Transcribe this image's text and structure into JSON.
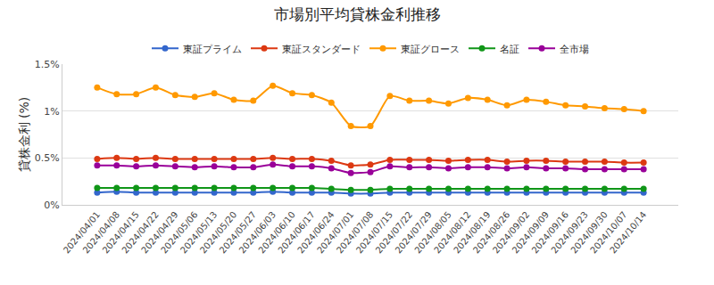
{
  "chart_data": {
    "type": "line",
    "title": "市場別平均貸株金利推移",
    "y_label": "貸株金利 (%)",
    "categories": [
      "2024/04/01",
      "2024/04/08",
      "2024/04/15",
      "2024/04/22",
      "2024/04/29",
      "2024/05/06",
      "2024/05/13",
      "2024/05/20",
      "2024/05/27",
      "2024/06/03",
      "2024/06/10",
      "2024/06/17",
      "2024/06/24",
      "2024/07/01",
      "2024/07/08",
      "2024/07/15",
      "2024/07/22",
      "2024/07/29",
      "2024/08/05",
      "2024/08/12",
      "2024/08/19",
      "2024/08/26",
      "2024/09/02",
      "2024/09/09",
      "2024/09/16",
      "2024/09/23",
      "2024/09/30",
      "2024/10/07",
      "2024/10/14"
    ],
    "series": [
      {
        "name": "東証プライム",
        "color": "#3366cc",
        "values": [
          0.13,
          0.14,
          0.13,
          0.13,
          0.13,
          0.13,
          0.13,
          0.13,
          0.13,
          0.14,
          0.13,
          0.13,
          0.13,
          0.12,
          0.12,
          0.13,
          0.13,
          0.13,
          0.13,
          0.13,
          0.13,
          0.13,
          0.13,
          0.13,
          0.13,
          0.13,
          0.13,
          0.13,
          0.13
        ]
      },
      {
        "name": "東証スタンダード",
        "color": "#dc3912",
        "values": [
          0.49,
          0.5,
          0.49,
          0.5,
          0.49,
          0.49,
          0.49,
          0.49,
          0.49,
          0.5,
          0.49,
          0.49,
          0.47,
          0.42,
          0.43,
          0.48,
          0.48,
          0.48,
          0.47,
          0.48,
          0.48,
          0.46,
          0.47,
          0.47,
          0.46,
          0.46,
          0.46,
          0.45,
          0.45
        ]
      },
      {
        "name": "東証グロース",
        "color": "#ff9900",
        "values": [
          1.25,
          1.18,
          1.18,
          1.25,
          1.17,
          1.15,
          1.19,
          1.12,
          1.11,
          1.27,
          1.19,
          1.17,
          1.09,
          0.84,
          0.84,
          1.16,
          1.11,
          1.11,
          1.08,
          1.14,
          1.12,
          1.06,
          1.12,
          1.1,
          1.06,
          1.05,
          1.03,
          1.02,
          1.0
        ]
      },
      {
        "name": "名証",
        "color": "#109618",
        "values": [
          0.18,
          0.18,
          0.18,
          0.18,
          0.18,
          0.18,
          0.18,
          0.18,
          0.18,
          0.18,
          0.18,
          0.18,
          0.17,
          0.16,
          0.16,
          0.17,
          0.17,
          0.17,
          0.17,
          0.17,
          0.17,
          0.17,
          0.17,
          0.17,
          0.17,
          0.17,
          0.17,
          0.17,
          0.17
        ]
      },
      {
        "name": "全市場",
        "color": "#990099",
        "values": [
          0.42,
          0.42,
          0.41,
          0.42,
          0.41,
          0.4,
          0.41,
          0.4,
          0.4,
          0.43,
          0.41,
          0.41,
          0.39,
          0.34,
          0.35,
          0.41,
          0.4,
          0.4,
          0.39,
          0.4,
          0.4,
          0.39,
          0.4,
          0.39,
          0.39,
          0.38,
          0.38,
          0.38,
          0.38
        ]
      }
    ],
    "ylim": [
      0,
      1.5
    ],
    "yticks": [
      {
        "value": 0,
        "label": "0%"
      },
      {
        "value": 0.5,
        "label": "0.5%"
      },
      {
        "value": 1,
        "label": "1%"
      },
      {
        "value": 1.5,
        "label": "1.5%"
      }
    ],
    "grid": true,
    "legend": "top",
    "marker": "circle",
    "line_style": "solid"
  }
}
